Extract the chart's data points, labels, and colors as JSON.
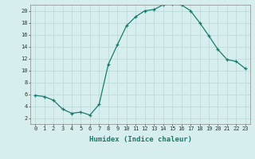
{
  "x": [
    0,
    1,
    2,
    3,
    4,
    5,
    6,
    7,
    8,
    9,
    10,
    11,
    12,
    13,
    14,
    15,
    16,
    17,
    18,
    19,
    20,
    21,
    22,
    23
  ],
  "y": [
    5.8,
    5.6,
    5.0,
    3.5,
    2.8,
    3.0,
    2.5,
    4.3,
    11.0,
    14.3,
    17.5,
    19.0,
    20.0,
    20.2,
    21.0,
    21.2,
    21.0,
    20.0,
    18.0,
    15.8,
    13.5,
    11.8,
    11.5,
    10.3
  ],
  "line_color": "#1a7a6e",
  "marker": "+",
  "marker_size": 3,
  "bg_color": "#d6efee",
  "grid_color": "#b8d8d6",
  "xlabel": "Humidex (Indice chaleur)",
  "xlim": [
    -0.5,
    23.5
  ],
  "ylim": [
    1,
    21
  ],
  "yticks": [
    2,
    4,
    6,
    8,
    10,
    12,
    14,
    16,
    18,
    20
  ],
  "xticks": [
    0,
    1,
    2,
    3,
    4,
    5,
    6,
    7,
    8,
    9,
    10,
    11,
    12,
    13,
    14,
    15,
    16,
    17,
    18,
    19,
    20,
    21,
    22,
    23
  ],
  "tick_label_fontsize": 5.0,
  "xlabel_fontsize": 6.5
}
